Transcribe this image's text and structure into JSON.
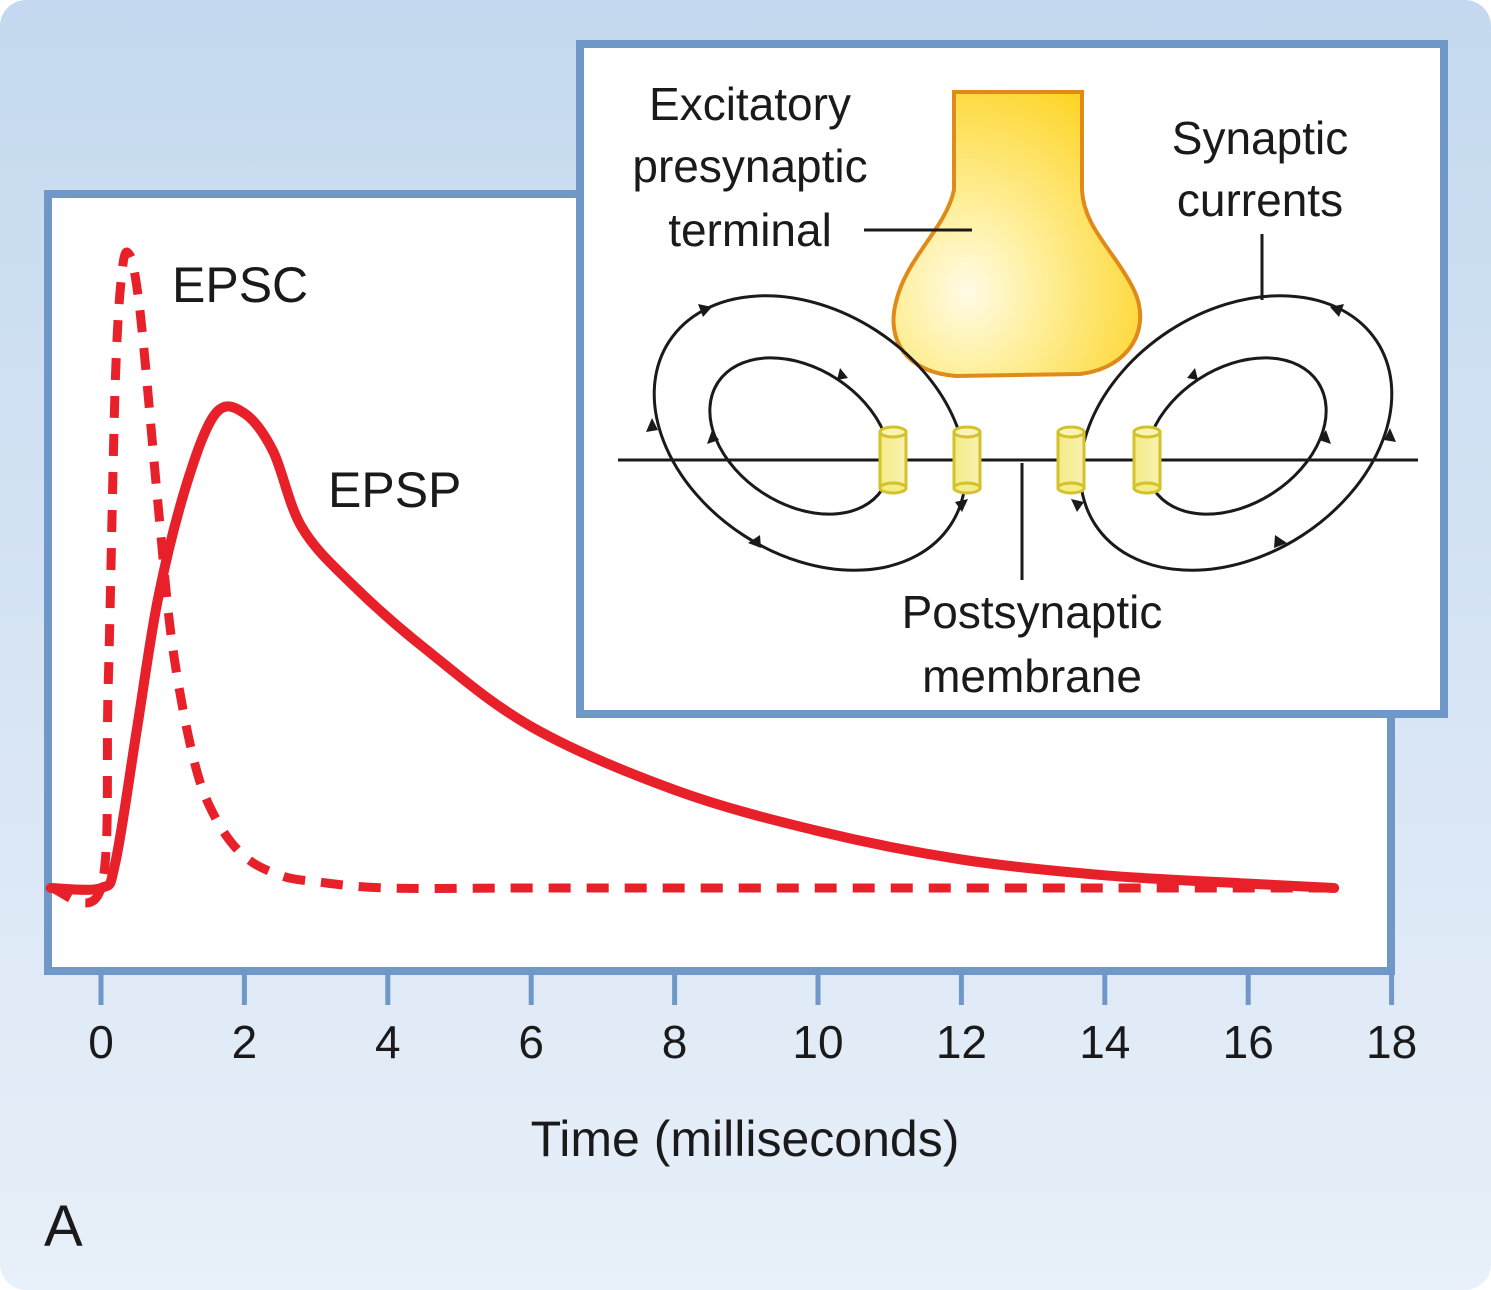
{
  "panel_label": "A",
  "colors": {
    "frame": "#6f97c8",
    "curve": "#e8202a",
    "terminal_fill": "#fdd52a",
    "terminal_edge": "#e08a1a",
    "channel": "#e9dc4a"
  },
  "chart_data": {
    "type": "line",
    "xlabel": "Time (milliseconds)",
    "ylabel": "",
    "xlim": [
      -0.7,
      18
    ],
    "ylim": [
      0,
      1
    ],
    "x_ticks": [
      0,
      2,
      4,
      6,
      8,
      10,
      12,
      14,
      16,
      18
    ],
    "x_tick_labels": [
      "0",
      "2",
      "4",
      "6",
      "8",
      "10",
      "12",
      "14",
      "16",
      "18"
    ],
    "grid": false,
    "series": [
      {
        "name": "EPSC",
        "style": "dashed",
        "x": [
          -0.7,
          0.0,
          0.1,
          0.2,
          0.3,
          0.4,
          0.5,
          0.6,
          0.8,
          1.0,
          1.3,
          1.6,
          2.0,
          2.5,
          3.0,
          4.0,
          6.0,
          10.0,
          14.0,
          17.2
        ],
        "y": [
          0.0,
          0.0,
          0.32,
          0.8,
          0.98,
          1.0,
          0.95,
          0.85,
          0.6,
          0.38,
          0.2,
          0.11,
          0.05,
          0.02,
          0.01,
          0.0,
          0.0,
          0.0,
          0.0,
          0.0
        ]
      },
      {
        "name": "EPSP",
        "style": "solid",
        "x": [
          -0.7,
          0.0,
          0.2,
          0.5,
          0.8,
          1.2,
          1.6,
          2.0,
          2.4,
          2.8,
          3.5,
          4.5,
          6.0,
          8.0,
          10.0,
          12.0,
          14.0,
          16.0,
          17.2
        ],
        "y": [
          0.0,
          0.0,
          0.04,
          0.25,
          0.46,
          0.64,
          0.75,
          0.75,
          0.69,
          0.57,
          0.48,
          0.38,
          0.255,
          0.155,
          0.09,
          0.045,
          0.02,
          0.007,
          0.0
        ]
      }
    ],
    "annotations": [
      "EPSC",
      "EPSP"
    ]
  },
  "inset": {
    "presynaptic_label": [
      "Excitatory",
      "presynaptic",
      "terminal"
    ],
    "currents_label": [
      "Synaptic",
      "currents"
    ],
    "postsynaptic_label": [
      "Postsynaptic",
      "membrane"
    ]
  }
}
